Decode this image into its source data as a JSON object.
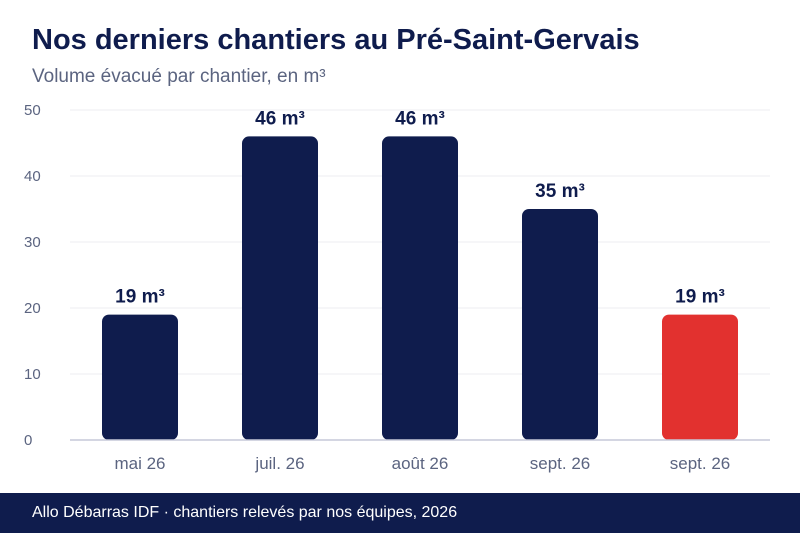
{
  "header": {
    "title": "Nos derniers chantiers au Pré-Saint-Gervais",
    "subtitle": "Volume évacué par chantier, en m³"
  },
  "footer": {
    "source": "Allo Débarras IDF · chantiers relevés par nos équipes, 2026"
  },
  "chart_data": {
    "type": "bar",
    "title": "Nos derniers chantiers au Pré-Saint-Gervais",
    "subtitle": "Volume évacué par chantier, en m³",
    "categories": [
      "mai 26",
      "juil. 26",
      "août 26",
      "sept. 26",
      "sept. 26"
    ],
    "values": [
      19,
      46,
      46,
      35,
      19
    ],
    "data_labels": [
      "19 m³",
      "46 m³",
      "46 m³",
      "35 m³",
      "19 m³"
    ],
    "bar_colors": [
      "#0f1c4d",
      "#0f1c4d",
      "#0f1c4d",
      "#0f1c4d",
      "#e2312f"
    ],
    "ylim": [
      0,
      50
    ],
    "yticks": [
      0,
      10,
      20,
      30,
      40,
      50
    ],
    "xlabel": "",
    "ylabel": "",
    "grid": true,
    "legend": "none"
  },
  "colors": {
    "primary": "#0f1c4d",
    "highlight": "#e2312f",
    "grid": "#ececf2",
    "axis": "#c6c8d8",
    "tick_text": "#5b6480"
  }
}
